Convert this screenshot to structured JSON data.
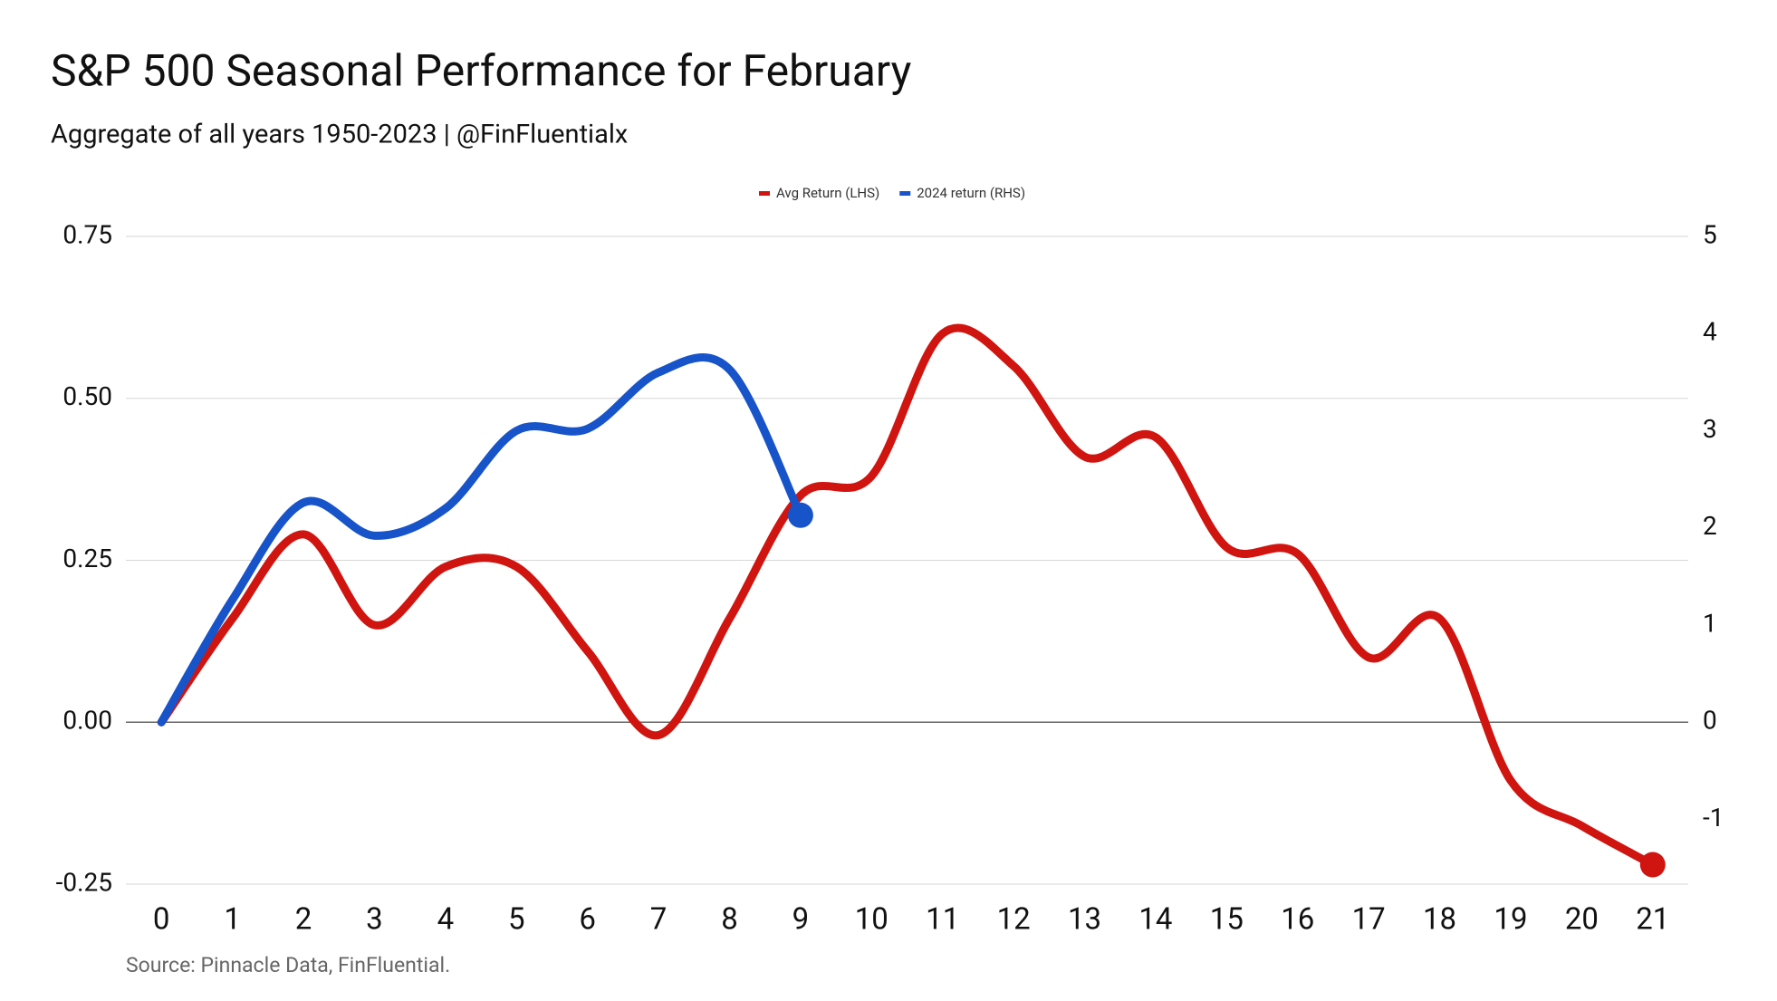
{
  "chart_data": {
    "type": "line",
    "title": "S&P 500 Seasonal Performance for February",
    "subtitle": "Aggregate of all years 1950-2023 | @FinFluentialx",
    "source": "Source: Pinnacle Data, FinFluential.",
    "x": [
      0,
      1,
      2,
      3,
      4,
      5,
      6,
      7,
      8,
      9,
      10,
      11,
      12,
      13,
      14,
      15,
      16,
      17,
      18,
      19,
      20,
      21
    ],
    "xlim": [
      -0.5,
      21.5
    ],
    "xticks": [
      0,
      1,
      2,
      3,
      4,
      5,
      6,
      7,
      8,
      9,
      10,
      11,
      12,
      13,
      14,
      15,
      16,
      17,
      18,
      19,
      20,
      21
    ],
    "ylim": [
      -0.25,
      0.75
    ],
    "yticks": [
      -0.25,
      {
        "value": 0,
        "label": "0.00"
      },
      0.25,
      {
        "value": 0.5,
        "label": "0.50"
      },
      0.75
    ],
    "y2lim": [
      -1.6667,
      5
    ],
    "y2ticks": [
      -1,
      0,
      1,
      2,
      3,
      4,
      5
    ],
    "grid": true,
    "legend": "top",
    "series": [
      {
        "name": "Avg Return (LHS)",
        "color": "#d0140f",
        "values": [
          0,
          0.16,
          0.29,
          0.15,
          0.24,
          0.24,
          0.11,
          -0.02,
          0.16,
          0.35,
          0.38,
          0.6,
          0.55,
          0.41,
          0.44,
          0.27,
          0.26,
          0.1,
          0.16,
          -0.09,
          -0.16,
          -0.22
        ]
      },
      {
        "name": "2024 return (RHS)",
        "color": "#1753c9",
        "axis": "y2",
        "values": [
          0,
          1.26,
          2.26,
          1.92,
          2.2,
          3.0,
          3.02,
          3.6,
          3.63,
          2.13,
          null,
          null,
          null,
          null,
          null,
          null,
          null,
          null,
          null,
          null,
          null,
          null
        ]
      }
    ]
  }
}
